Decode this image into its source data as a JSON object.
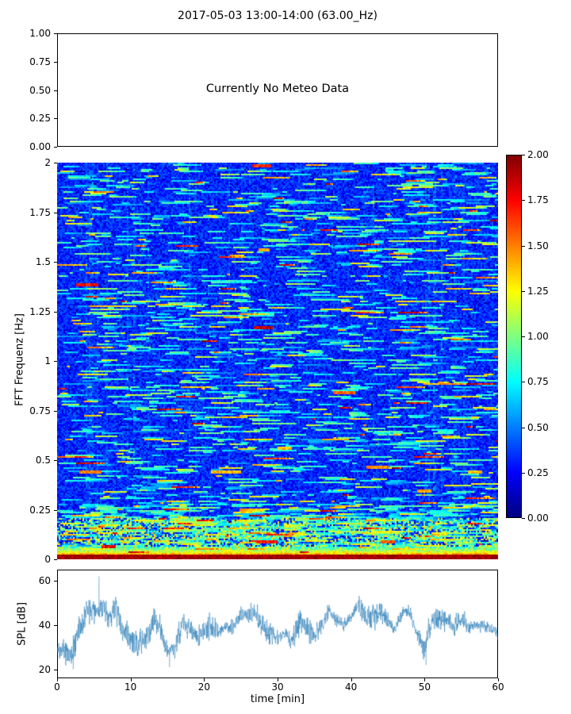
{
  "figure": {
    "title": "2017-05-03 13:00-14:00 (63.00_Hz)",
    "background_color": "#ffffff",
    "line_color": "#1f77b4"
  },
  "panels": {
    "meteo": {
      "message": "Currently No Meteo Data",
      "ytick_labels": [
        "1.00",
        "0.75",
        "0.50",
        "0.25",
        "0.00"
      ]
    },
    "spectrogram": {
      "ylabel": "FFT Frequenz [Hz]",
      "ytick_labels": [
        "2",
        "1.75",
        "1.5",
        "1.25",
        "1",
        "0.75",
        "0.5",
        "0.25",
        "0"
      ]
    },
    "colorbar": {
      "tick_labels": [
        "2.00",
        "1.75",
        "1.50",
        "1.25",
        "1.00",
        "0.75",
        "0.50",
        "0.25",
        "0.00"
      ]
    },
    "spl": {
      "ylabel": "SPL [dB]",
      "xlabel": "time [min]",
      "ytick_labels": [
        "60",
        "40",
        "20"
      ],
      "xtick_labels": [
        "0",
        "10",
        "20",
        "30",
        "40",
        "50",
        "60"
      ]
    }
  },
  "chart_data": [
    {
      "type": "table",
      "panel": "meteo",
      "message": "Currently No Meteo Data",
      "ylim": [
        0,
        1
      ],
      "yticks": [
        0,
        0.25,
        0.5,
        0.75,
        1.0
      ],
      "grid": false,
      "notes": "empty axes placeholder, no data plotted"
    },
    {
      "type": "heatmap",
      "panel": "spectrogram",
      "title": "2017-05-03 13:00-14:00 (63.00_Hz)",
      "xlabel": "time [min]",
      "ylabel": "FFT Frequenz [Hz]",
      "x_range": [
        0,
        60
      ],
      "y_range": [
        0,
        2
      ],
      "yticks": [
        0,
        0.25,
        0.5,
        0.75,
        1,
        1.25,
        1.5,
        1.75,
        2
      ],
      "clim": [
        0,
        2
      ],
      "colormap": "jet",
      "colorbar_ticks": [
        0,
        0.25,
        0.5,
        0.75,
        1.0,
        1.25,
        1.5,
        1.75,
        2.0
      ],
      "background_level": {
        "mean": 0.33,
        "spread": 0.13
      },
      "texture": "fine horizontal noise streaks, mostly blue (0.2-0.5) with scattered cyan/green/yellow streaks (0.6-1.5) and rare red (1.6-2.0)",
      "bottom_band": {
        "freq_below": 0.05,
        "value_range": [
          1.6,
          2.0
        ],
        "description": "continuous dark-red high-energy band at lowest frequencies"
      },
      "low_freq_zone": {
        "freq_below": 0.15,
        "value_range": [
          0.5,
          1.6
        ],
        "description": "elevated green/yellow/orange mixture"
      },
      "hotspots": [
        {
          "t_min": 2.5,
          "freq_hz": 1.39,
          "width_min": 3.0,
          "value": 1.9
        },
        {
          "t_min": 26.5,
          "freq_hz": 1.99,
          "width_min": 2.5,
          "value": 1.8
        },
        {
          "t_min": 26.8,
          "freq_hz": 1.18,
          "width_min": 2.5,
          "value": 2.0
        },
        {
          "t_min": 27.5,
          "freq_hz": 1.57,
          "width_min": 1.5,
          "value": 1.5
        },
        {
          "t_min": 37.5,
          "freq_hz": 0.85,
          "width_min": 3.0,
          "value": 1.7
        },
        {
          "t_min": 42.0,
          "freq_hz": 0.47,
          "width_min": 3.0,
          "value": 1.6
        },
        {
          "t_min": 21.0,
          "freq_hz": 0.45,
          "width_min": 4.0,
          "value": 1.5
        },
        {
          "t_min": 3.0,
          "freq_hz": 0.45,
          "width_min": 3.0,
          "value": 1.6
        },
        {
          "t_min": 49.0,
          "freq_hz": 0.35,
          "width_min": 2.0,
          "value": 1.5
        },
        {
          "t_min": 56.0,
          "freq_hz": 0.45,
          "width_min": 2.0,
          "value": 1.5
        },
        {
          "t_min": 30.0,
          "freq_hz": 0.57,
          "width_min": 2.0,
          "value": 1.5
        },
        {
          "t_min": 6.0,
          "freq_hz": 0.07,
          "width_min": 2.0,
          "value": 1.9
        },
        {
          "t_min": 27.0,
          "freq_hz": 0.1,
          "width_min": 3.0,
          "value": 1.8
        },
        {
          "t_min": 44.0,
          "freq_hz": 0.1,
          "width_min": 2.0,
          "value": 1.7
        }
      ]
    },
    {
      "type": "line",
      "panel": "spl",
      "xlabel": "time [min]",
      "ylabel": "SPL [dB]",
      "xlim": [
        0,
        60
      ],
      "ylim": [
        16,
        65
      ],
      "xticks": [
        0,
        10,
        20,
        30,
        40,
        50,
        60
      ],
      "yticks": [
        20,
        40,
        60
      ],
      "series": [
        {
          "name": "SPL",
          "color": "#1f77b4",
          "style": "dense noisy thin line",
          "x": [
            0,
            1,
            2,
            3,
            4,
            5,
            6,
            7,
            8,
            9,
            10,
            11,
            12,
            13,
            14,
            15,
            16,
            17,
            18,
            19,
            20,
            21,
            22,
            23,
            24,
            25,
            26,
            27,
            28,
            29,
            30,
            31,
            32,
            33,
            34,
            35,
            36,
            37,
            38,
            39,
            40,
            41,
            42,
            43,
            44,
            45,
            46,
            47,
            48,
            49,
            50,
            51,
            52,
            53,
            54,
            55,
            56,
            57,
            58,
            59,
            60
          ],
          "y": [
            30,
            27,
            26,
            38,
            46,
            46,
            48,
            44,
            46,
            38,
            33,
            31,
            34,
            42,
            40,
            27,
            30,
            42,
            38,
            35,
            38,
            40,
            36,
            40,
            38,
            45,
            44,
            46,
            40,
            36,
            34,
            36,
            34,
            42,
            38,
            36,
            40,
            46,
            42,
            40,
            44,
            50,
            44,
            44,
            46,
            42,
            38,
            46,
            46,
            36,
            30,
            42,
            44,
            42,
            40,
            44,
            38,
            40,
            40,
            38,
            36
          ],
          "noise_amplitude_db": 6,
          "spikes": [
            {
              "x": 5.7,
              "y": 62
            }
          ],
          "dips": [
            {
              "x": 2.2,
              "y": 20
            },
            {
              "x": 15.3,
              "y": 21
            },
            {
              "x": 50.2,
              "y": 22
            }
          ]
        }
      ],
      "grid": false
    }
  ]
}
